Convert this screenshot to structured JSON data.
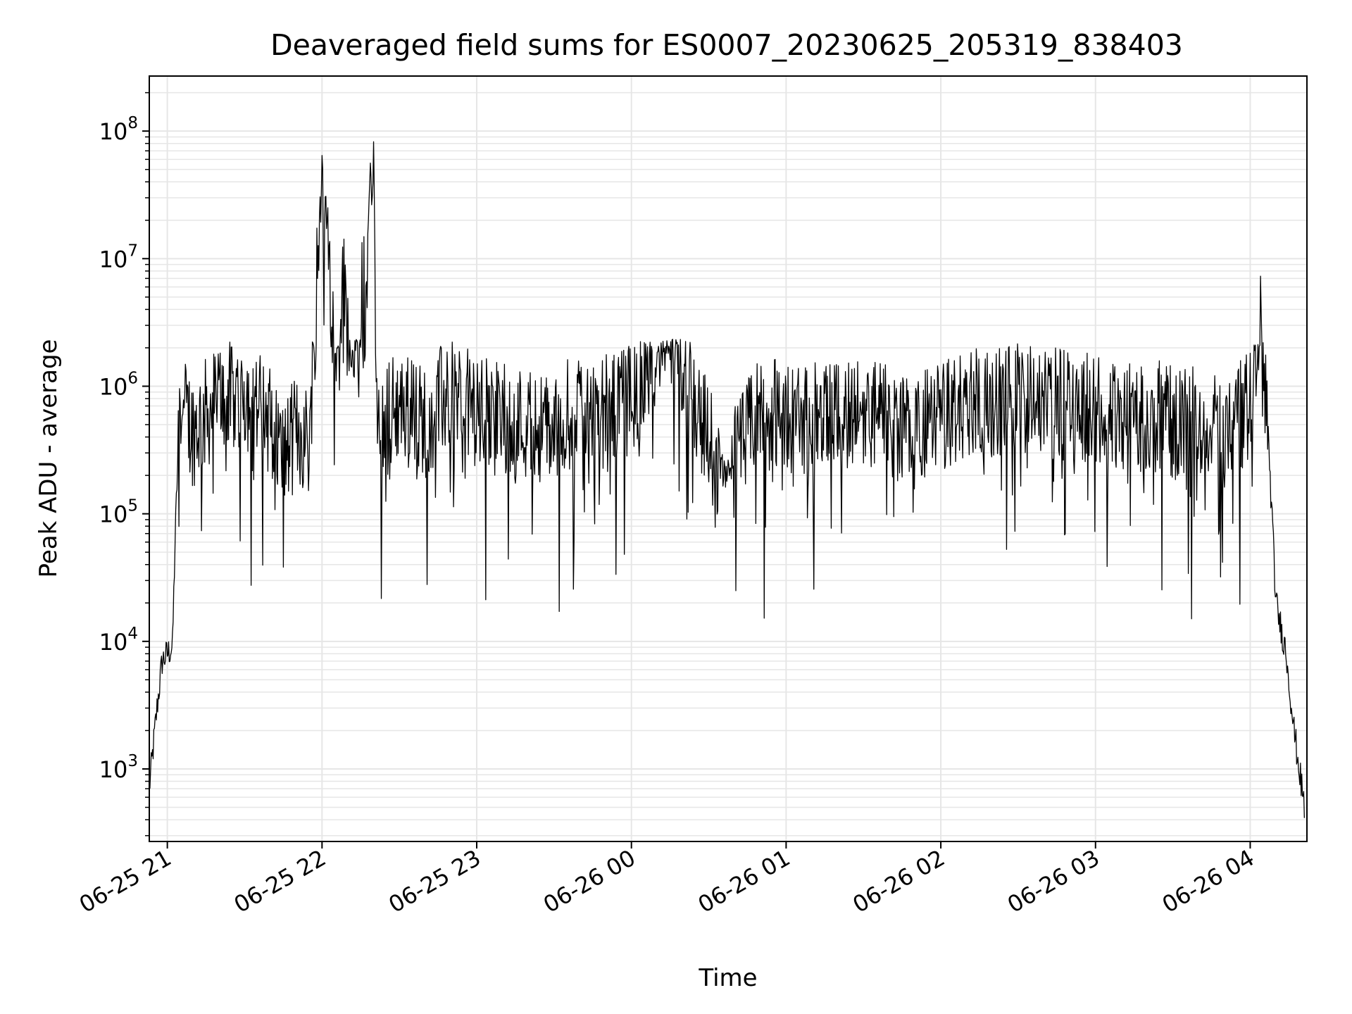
{
  "chart_data": {
    "type": "line",
    "title": "Deaveraged field sums for ES0007_20230625_205319_838403",
    "xlabel": "Time",
    "ylabel": "Peak ADU - average",
    "x_tick_labels": [
      "06-25 21",
      "06-25 22",
      "06-25 23",
      "06-26 00",
      "06-26 01",
      "06-26 02",
      "06-26 03",
      "06-26 04"
    ],
    "x_tick_times": [
      "2023-06-25 21:00",
      "2023-06-25 22:00",
      "2023-06-25 23:00",
      "2023-06-26 00:00",
      "2023-06-26 01:00",
      "2023-06-26 02:00",
      "2023-06-26 03:00",
      "2023-06-26 04:00"
    ],
    "xlim": [
      "2023-06-25 20:53",
      "2023-06-26 04:22"
    ],
    "y_scale": "log",
    "ylim": [
      270,
      270000000
    ],
    "y_tick_base": "10",
    "y_tick_exponents": [
      "3",
      "4",
      "5",
      "6",
      "7",
      "8"
    ],
    "grid": true,
    "line_color": "#000000",
    "grid_color": "#e6e6e6",
    "series": [
      {
        "x": [
          "2023-06-25 20:53",
          "2023-06-25 20:56",
          "2023-06-25 20:58",
          "2023-06-25 21:00",
          "2023-06-25 21:02",
          "2023-06-25 21:03",
          "2023-06-25 21:05",
          "2023-06-25 21:06",
          "2023-06-25 21:10",
          "2023-06-25 21:20",
          "2023-06-25 21:30",
          "2023-06-25 21:40",
          "2023-06-25 21:45",
          "2023-06-25 21:50",
          "2023-06-25 21:55",
          "2023-06-25 22:00",
          "2023-06-25 22:05",
          "2023-06-25 22:08",
          "2023-06-25 22:10",
          "2023-06-25 22:13",
          "2023-06-25 22:17",
          "2023-06-25 22:20",
          "2023-06-25 22:21",
          "2023-06-25 22:30",
          "2023-06-25 22:40",
          "2023-06-25 22:50",
          "2023-06-25 23:00",
          "2023-06-25 23:15",
          "2023-06-25 23:30",
          "2023-06-25 23:40",
          "2023-06-25 23:50",
          "2023-06-26 00:00",
          "2023-06-26 00:14",
          "2023-06-26 00:25",
          "2023-06-26 00:36",
          "2023-06-26 00:50",
          "2023-06-26 01:10",
          "2023-06-26 01:30",
          "2023-06-26 01:50",
          "2023-06-26 02:10",
          "2023-06-26 02:30",
          "2023-06-26 02:50",
          "2023-06-26 03:10",
          "2023-06-26 03:30",
          "2023-06-26 03:50",
          "2023-06-26 04:00",
          "2023-06-26 04:04",
          "2023-06-26 04:07",
          "2023-06-26 04:10",
          "2023-06-26 04:14",
          "2023-06-26 04:17",
          "2023-06-26 04:21"
        ],
        "y": [
          700,
          3000,
          7000,
          8000,
          9000,
          60000,
          1000000,
          700000,
          500000,
          900000,
          1000000,
          600000,
          300000,
          500000,
          400000,
          50000000,
          3000000,
          5000000,
          4000000,
          3000000,
          5000000,
          130000000,
          500000,
          800000,
          600000,
          1000000,
          700000,
          600000,
          500000,
          800000,
          700000,
          900000,
          3500000,
          800000,
          200000,
          700000,
          600000,
          700000,
          500000,
          800000,
          900000,
          800000,
          700000,
          600000,
          500000,
          800000,
          5000000,
          400000,
          20000,
          8000,
          2000,
          500
        ]
      }
    ]
  }
}
